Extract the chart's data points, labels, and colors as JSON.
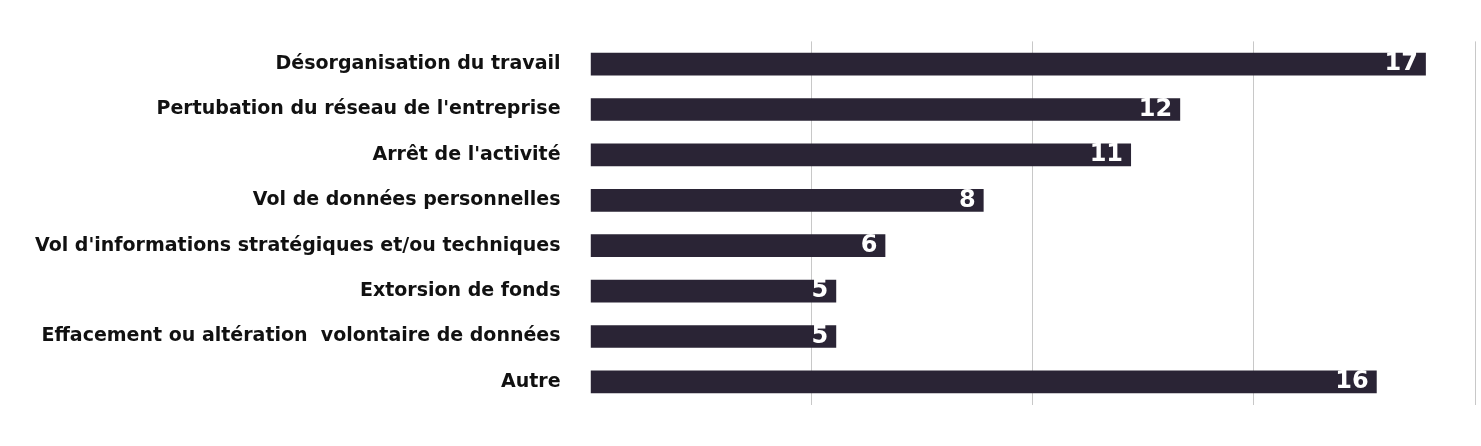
{
  "chart_data": {
    "type": "bar",
    "orientation": "horizontal",
    "categories": [
      "Désorganisation du travail",
      "Pertubation du réseau de l'entreprise",
      "Arrêt de l'activité",
      "Vol de données personnelles",
      "Vol d'informations stratégiques et/ou techniques",
      "Extorsion de fonds",
      "Effacement ou altération  volontaire de données",
      "Autre"
    ],
    "values": [
      17,
      12,
      11,
      8,
      6,
      5,
      5,
      16
    ],
    "color": "#2a2435",
    "xlim": [
      0,
      18
    ],
    "xticks": [
      {
        "value": 4.5,
        "label": null
      },
      {
        "value": 9,
        "label": null
      },
      {
        "value": 13.5,
        "label": null
      },
      {
        "value": 18,
        "label": null
      }
    ],
    "grid": "x",
    "tick_labels": "y",
    "data_labels": true
  }
}
